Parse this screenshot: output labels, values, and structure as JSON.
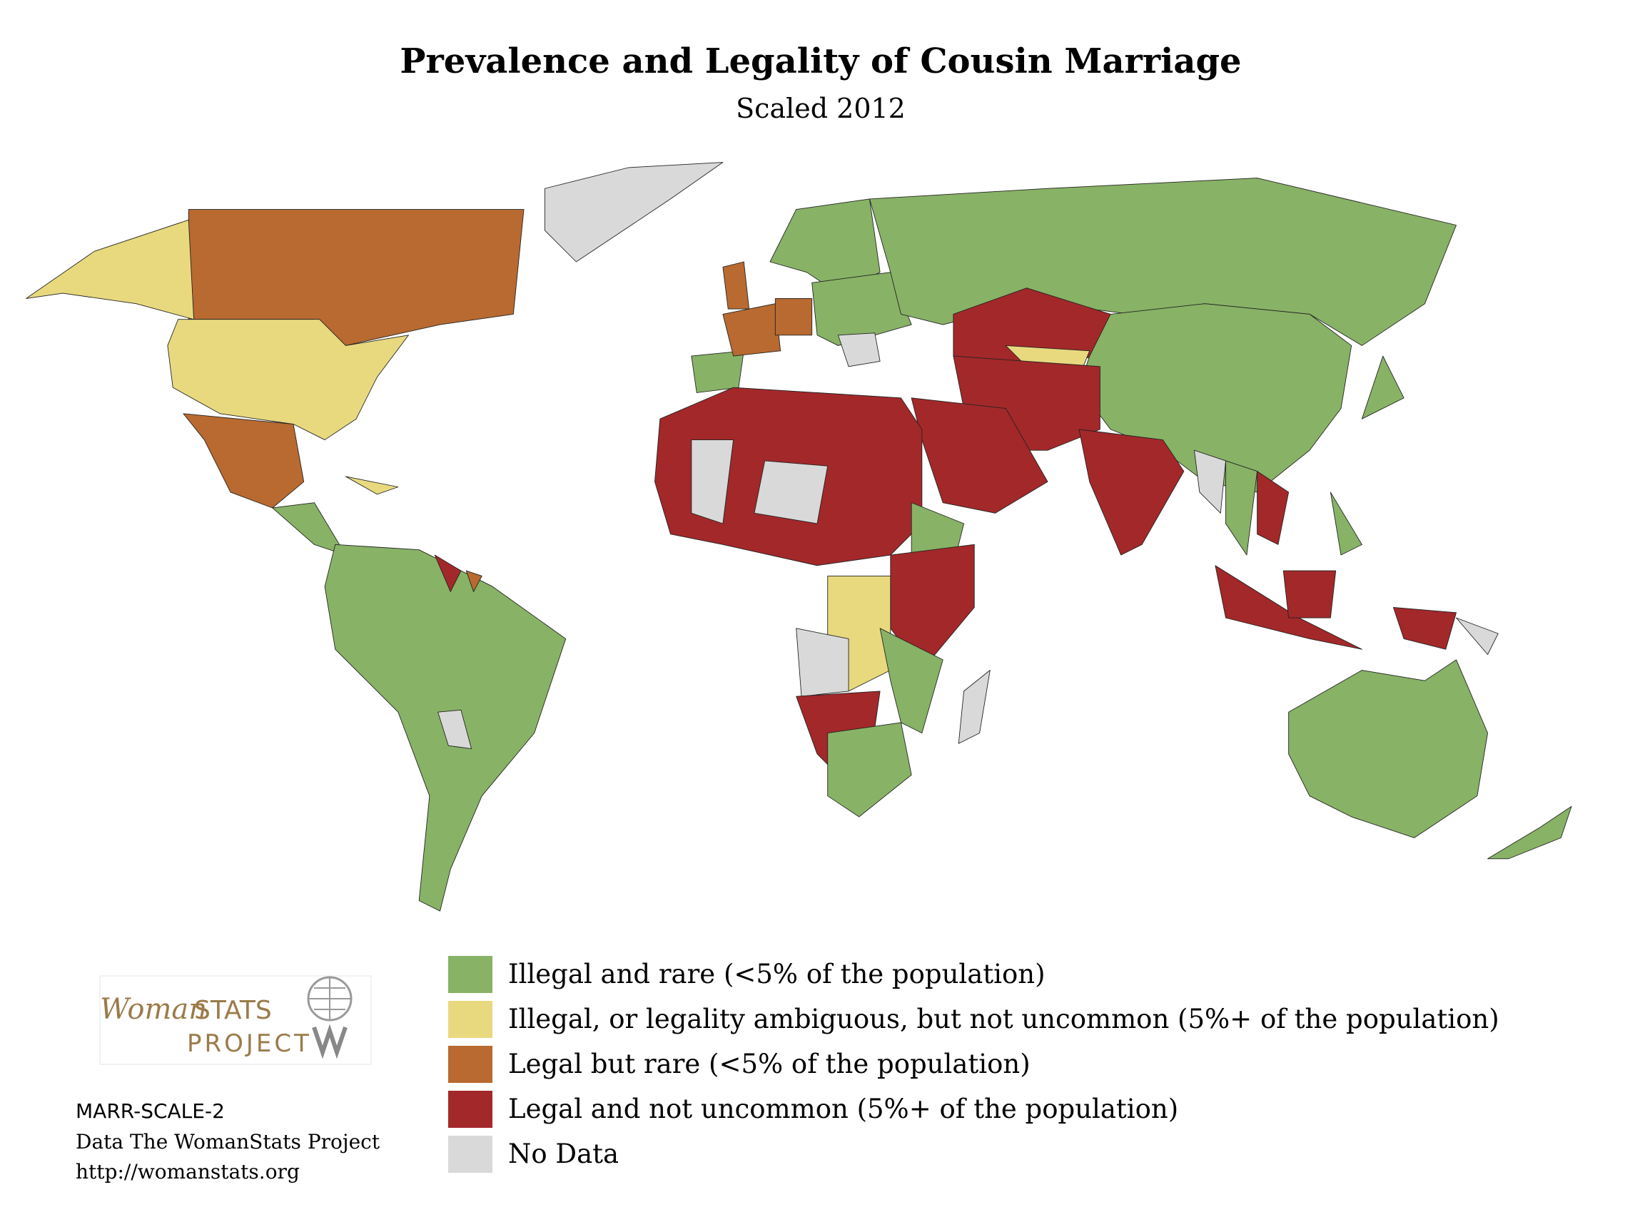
{
  "header": {
    "title": "Prevalence and Legality of Cousin Marriage",
    "subtitle": "Scaled 2012"
  },
  "legend": [
    {
      "label": "Illegal and rare (<5% of the population)",
      "color": "#88b266"
    },
    {
      "label": "Illegal, or legality ambiguous, but not uncommon (5%+ of the population)",
      "color": "#e8d97f"
    },
    {
      "label": "Legal but rare (<5% of the population)",
      "color": "#b86a30"
    },
    {
      "label": "Legal and not uncommon (5%+ of the population)",
      "color": "#a3282a"
    },
    {
      "label": "No Data",
      "color": "#d9d9d9"
    }
  ],
  "logo": {
    "woman": "Woman",
    "stats": "STATS",
    "project": "PROJECT"
  },
  "footer": [
    "MARR-SCALE-2",
    "Data The WomanStats Project",
    "http://womanstats.org"
  ]
}
